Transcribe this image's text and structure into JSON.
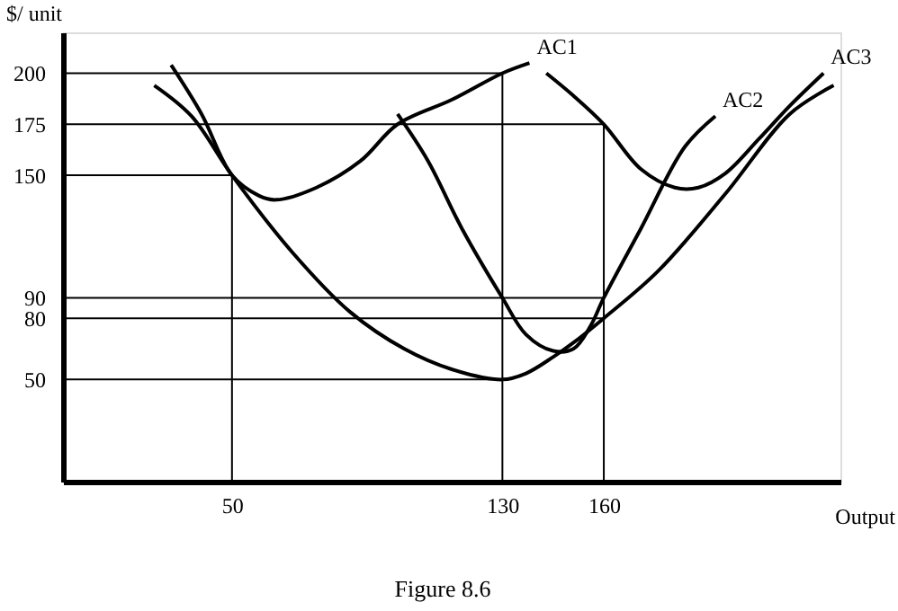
{
  "chart_data": {
    "type": "line",
    "ylabel": "$/ unit",
    "xlabel": "Output",
    "annotations": [
      "Figure 8.6"
    ],
    "xlim": [
      0,
      230
    ],
    "xticks": [
      50,
      130,
      160
    ],
    "ylim": [
      0,
      220
    ],
    "yticks": [
      50,
      80,
      90,
      150,
      175,
      200
    ],
    "grid": false,
    "marker": "none",
    "line_style": "solid",
    "series": [
      {
        "name": "AC1",
        "color": "#000000",
        "x": [
          32,
          41,
          50,
          58,
          63,
          75,
          88,
          99,
          115,
          130,
          138
        ],
        "values": [
          204,
          180,
          150,
          140,
          138,
          144,
          157,
          175,
          187,
          200,
          205
        ]
      },
      {
        "name": "AC2",
        "color": "#000000",
        "x": [
          99,
          108,
          118,
          130,
          137,
          145,
          151,
          156,
          160,
          171,
          184,
          193
        ],
        "values": [
          180,
          157,
          124,
          90,
          72,
          64,
          65,
          76,
          90,
          124,
          164,
          179
        ]
      },
      {
        "name": "AC3",
        "color": "#000000",
        "x": [
          143,
          151,
          160,
          171,
          181,
          188,
          196,
          206,
          215,
          225
        ],
        "values": [
          200,
          189,
          175,
          153,
          144,
          144,
          151,
          168,
          184,
          200
        ]
      },
      {
        "color": "#000000",
        "x": [
          27,
          38,
          50,
          68,
          85,
          101,
          115,
          130,
          137,
          145,
          151,
          160,
          176,
          196,
          215,
          228
        ],
        "values": [
          194,
          179,
          150,
          112,
          83,
          65,
          55,
          50,
          53,
          61,
          68,
          80,
          103,
          141,
          180,
          194
        ]
      },
      {
        "color": "#000000",
        "x": [
          0,
          130
        ],
        "values": [
          200,
          200
        ]
      },
      {
        "color": "#000000",
        "x": [
          0,
          160
        ],
        "values": [
          175,
          175
        ]
      },
      {
        "color": "#000000",
        "x": [
          0,
          50
        ],
        "values": [
          150,
          150
        ]
      },
      {
        "color": "#000000",
        "x": [
          0,
          160
        ],
        "values": [
          90,
          90
        ]
      },
      {
        "color": "#000000",
        "x": [
          0,
          160
        ],
        "values": [
          80,
          80
        ]
      },
      {
        "color": "#000000",
        "x": [
          0,
          130
        ],
        "values": [
          50,
          50
        ]
      },
      {
        "color": "#000000",
        "x": [
          50,
          50
        ],
        "values": [
          0,
          150
        ]
      },
      {
        "color": "#000000",
        "x": [
          130,
          130
        ],
        "values": [
          0,
          200
        ]
      },
      {
        "color": "#000000",
        "x": [
          160,
          160
        ],
        "values": [
          0,
          175
        ]
      }
    ]
  }
}
